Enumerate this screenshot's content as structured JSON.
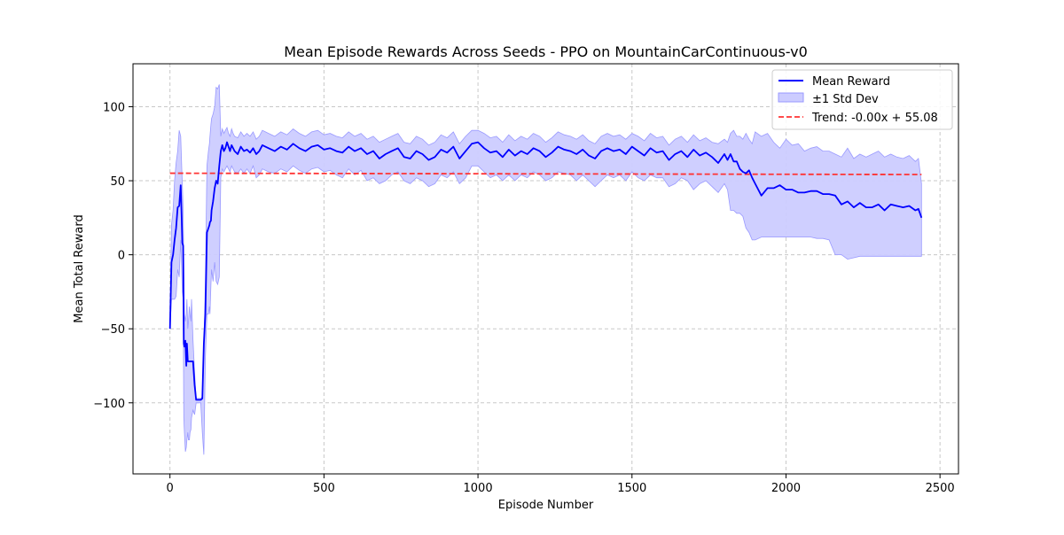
{
  "chart_data": {
    "type": "line",
    "title": "Mean Episode Rewards Across Seeds - PPO on MountainCarContinuous-v0",
    "xlabel": "Episode Number",
    "ylabel": "Mean Total Reward",
    "xlim": [
      -120,
      2560
    ],
    "ylim": [
      -148,
      129
    ],
    "xticks": [
      0,
      500,
      1000,
      1500,
      2000,
      2500
    ],
    "yticks": [
      -100,
      -50,
      0,
      50,
      100
    ],
    "xtick_labels": [
      "0",
      "500",
      "1000",
      "1500",
      "2000",
      "2500"
    ],
    "ytick_labels": [
      "−100",
      "−50",
      "0",
      "50",
      "100"
    ],
    "grid": true,
    "legend_position": "top-right",
    "colors": {
      "mean": "#0000ff",
      "band": "#ccccff",
      "band_edge": "#9999ff",
      "trend": "#ff3333",
      "grid": "#c8c8c8"
    },
    "series": [
      {
        "name": "Mean Reward",
        "style": "solid-line",
        "x": [
          0,
          5,
          10,
          15,
          20,
          25,
          30,
          35,
          38,
          40,
          43,
          45,
          47,
          50,
          53,
          55,
          58,
          60,
          63,
          65,
          68,
          70,
          75,
          80,
          85,
          90,
          95,
          100,
          105,
          110,
          115,
          120,
          125,
          128,
          130,
          133,
          135,
          140,
          145,
          150,
          155,
          160,
          165,
          170,
          175,
          180,
          185,
          190,
          195,
          200,
          205,
          210,
          220,
          230,
          240,
          250,
          260,
          270,
          280,
          290,
          300,
          320,
          340,
          360,
          380,
          400,
          420,
          440,
          460,
          480,
          500,
          520,
          540,
          560,
          580,
          600,
          620,
          640,
          660,
          680,
          700,
          720,
          740,
          760,
          780,
          800,
          820,
          840,
          860,
          880,
          900,
          920,
          940,
          960,
          980,
          1000,
          1020,
          1040,
          1060,
          1080,
          1100,
          1120,
          1140,
          1160,
          1180,
          1200,
          1220,
          1240,
          1260,
          1280,
          1300,
          1320,
          1340,
          1360,
          1380,
          1400,
          1420,
          1440,
          1460,
          1480,
          1500,
          1520,
          1540,
          1560,
          1580,
          1600,
          1620,
          1640,
          1660,
          1680,
          1700,
          1720,
          1740,
          1760,
          1780,
          1800,
          1810,
          1820,
          1830,
          1840,
          1850,
          1860,
          1870,
          1880,
          1890,
          1900,
          1920,
          1940,
          1960,
          1980,
          2000,
          2020,
          2040,
          2060,
          2080,
          2100,
          2120,
          2140,
          2160,
          2180,
          2200,
          2220,
          2240,
          2260,
          2280,
          2300,
          2320,
          2340,
          2360,
          2380,
          2400,
          2420,
          2430,
          2440
        ],
        "y": [
          -50,
          -5,
          0,
          10,
          18,
          32,
          33,
          47,
          25,
          8,
          6,
          -60,
          -62,
          -58,
          -75,
          -60,
          -72,
          -72,
          -72,
          -72,
          -72,
          -72,
          -72,
          -88,
          -98,
          -98,
          -98,
          -98,
          -97,
          -60,
          -40,
          15,
          18,
          20,
          22,
          23,
          30,
          36,
          45,
          50,
          48,
          60,
          70,
          74,
          70,
          72,
          76,
          73,
          70,
          74,
          72,
          70,
          68,
          73,
          70,
          71,
          69,
          72,
          68,
          70,
          74,
          72,
          70,
          73,
          71,
          75,
          72,
          70,
          73,
          74,
          71,
          72,
          70,
          69,
          73,
          70,
          72,
          68,
          70,
          65,
          68,
          70,
          72,
          66,
          65,
          70,
          68,
          64,
          66,
          71,
          69,
          73,
          65,
          70,
          75,
          76,
          72,
          69,
          70,
          66,
          71,
          67,
          70,
          68,
          72,
          70,
          66,
          69,
          73,
          71,
          70,
          68,
          71,
          67,
          65,
          70,
          72,
          70,
          71,
          68,
          73,
          70,
          67,
          72,
          69,
          70,
          64,
          68,
          70,
          66,
          71,
          67,
          69,
          66,
          62,
          68,
          64,
          68,
          63,
          63,
          58,
          56,
          55,
          57,
          52,
          48,
          40,
          45,
          45,
          47,
          44,
          44,
          42,
          42,
          43,
          43,
          41,
          41,
          40,
          34,
          36,
          32,
          35,
          32,
          32,
          34,
          30,
          34,
          33,
          32,
          33,
          30,
          31,
          25
        ]
      },
      {
        "name": "±1 Std Dev",
        "style": "band",
        "x": [
          0,
          5,
          10,
          15,
          20,
          25,
          30,
          35,
          38,
          40,
          43,
          45,
          47,
          50,
          53,
          55,
          58,
          60,
          63,
          65,
          68,
          70,
          75,
          80,
          85,
          90,
          95,
          100,
          105,
          110,
          115,
          120,
          125,
          128,
          130,
          133,
          135,
          140,
          145,
          150,
          155,
          160,
          165,
          170,
          175,
          180,
          185,
          190,
          195,
          200,
          205,
          210,
          220,
          230,
          240,
          250,
          260,
          270,
          280,
          290,
          300,
          320,
          340,
          360,
          380,
          400,
          420,
          440,
          460,
          480,
          500,
          520,
          540,
          560,
          580,
          600,
          620,
          640,
          660,
          680,
          700,
          720,
          740,
          760,
          780,
          800,
          820,
          840,
          860,
          880,
          900,
          920,
          940,
          960,
          980,
          1000,
          1020,
          1040,
          1060,
          1080,
          1100,
          1120,
          1140,
          1160,
          1180,
          1200,
          1220,
          1240,
          1260,
          1280,
          1300,
          1320,
          1340,
          1360,
          1380,
          1400,
          1420,
          1440,
          1460,
          1480,
          1500,
          1520,
          1540,
          1560,
          1580,
          1600,
          1620,
          1640,
          1660,
          1680,
          1700,
          1720,
          1740,
          1760,
          1780,
          1800,
          1810,
          1820,
          1830,
          1840,
          1850,
          1860,
          1870,
          1880,
          1890,
          1900,
          1920,
          1940,
          1960,
          1980,
          2000,
          2020,
          2040,
          2060,
          2080,
          2100,
          2120,
          2140,
          2160,
          2180,
          2200,
          2220,
          2240,
          2260,
          2280,
          2300,
          2320,
          2340,
          2360,
          2380,
          2400,
          2420,
          2430,
          2440
        ],
        "upper": [
          -50,
          20,
          30,
          50,
          62,
          70,
          84,
          80,
          60,
          48,
          30,
          -10,
          -40,
          -45,
          -40,
          -30,
          -50,
          -45,
          -35,
          -40,
          -45,
          -30,
          -58,
          -80,
          -97,
          -97,
          -97,
          -97,
          -96,
          -60,
          -20,
          60,
          70,
          75,
          80,
          88,
          92,
          95,
          100,
          113,
          112,
          115,
          80,
          85,
          82,
          84,
          86,
          82,
          80,
          85,
          82,
          80,
          79,
          83,
          80,
          82,
          80,
          83,
          78,
          80,
          84,
          82,
          80,
          83,
          81,
          85,
          82,
          80,
          83,
          84,
          81,
          82,
          80,
          79,
          83,
          80,
          82,
          78,
          80,
          76,
          78,
          80,
          82,
          76,
          75,
          80,
          78,
          74,
          76,
          81,
          79,
          83,
          75,
          80,
          84,
          84,
          82,
          79,
          80,
          76,
          81,
          77,
          80,
          78,
          82,
          80,
          76,
          79,
          83,
          81,
          80,
          78,
          81,
          77,
          75,
          80,
          82,
          80,
          81,
          78,
          82,
          80,
          77,
          82,
          79,
          80,
          74,
          78,
          80,
          76,
          81,
          77,
          79,
          76,
          75,
          78,
          76,
          82,
          84,
          80,
          80,
          78,
          82,
          78,
          75,
          83,
          80,
          82,
          76,
          72,
          78,
          74,
          75,
          70,
          72,
          73,
          70,
          70,
          68,
          66,
          72,
          65,
          68,
          66,
          68,
          70,
          66,
          68,
          66,
          65,
          67,
          63,
          65,
          48
        ],
        "lower": [
          -50,
          -30,
          -30,
          -30,
          -28,
          -10,
          -15,
          10,
          -10,
          -25,
          -30,
          -110,
          -120,
          -133,
          -130,
          -125,
          -120,
          -125,
          -125,
          -120,
          -118,
          -110,
          -105,
          -108,
          -100,
          -100,
          -100,
          -100,
          -120,
          -135,
          -70,
          -40,
          -40,
          -35,
          -40,
          -20,
          -10,
          -18,
          -5,
          -18,
          -20,
          -15,
          52,
          58,
          56,
          58,
          60,
          58,
          56,
          60,
          58,
          56,
          55,
          58,
          55,
          58,
          55,
          60,
          52,
          54,
          58,
          56,
          55,
          58,
          56,
          60,
          57,
          55,
          58,
          59,
          56,
          57,
          54,
          52,
          58,
          54,
          57,
          50,
          52,
          48,
          50,
          54,
          56,
          50,
          48,
          52,
          50,
          46,
          48,
          54,
          52,
          56,
          48,
          52,
          60,
          60,
          56,
          52,
          54,
          50,
          54,
          50,
          54,
          52,
          56,
          54,
          50,
          52,
          56,
          55,
          54,
          50,
          54,
          50,
          46,
          50,
          54,
          52,
          54,
          50,
          56,
          52,
          50,
          54,
          52,
          52,
          46,
          48,
          52,
          50,
          44,
          48,
          50,
          46,
          42,
          48,
          44,
          30,
          30,
          28,
          28,
          26,
          18,
          15,
          10,
          10,
          12,
          12,
          12,
          12,
          12,
          12,
          12,
          12,
          12,
          11,
          11,
          10,
          0,
          0,
          -3,
          -2,
          -1,
          -1,
          -1,
          -1,
          -1,
          -1,
          -1,
          -1,
          -1,
          -1,
          -1,
          -1
        ]
      },
      {
        "name": "Trend: -0.00x + 55.08",
        "style": "dashed-line",
        "x": [
          0,
          2440
        ],
        "y": [
          55.08,
          54.2
        ]
      }
    ]
  }
}
